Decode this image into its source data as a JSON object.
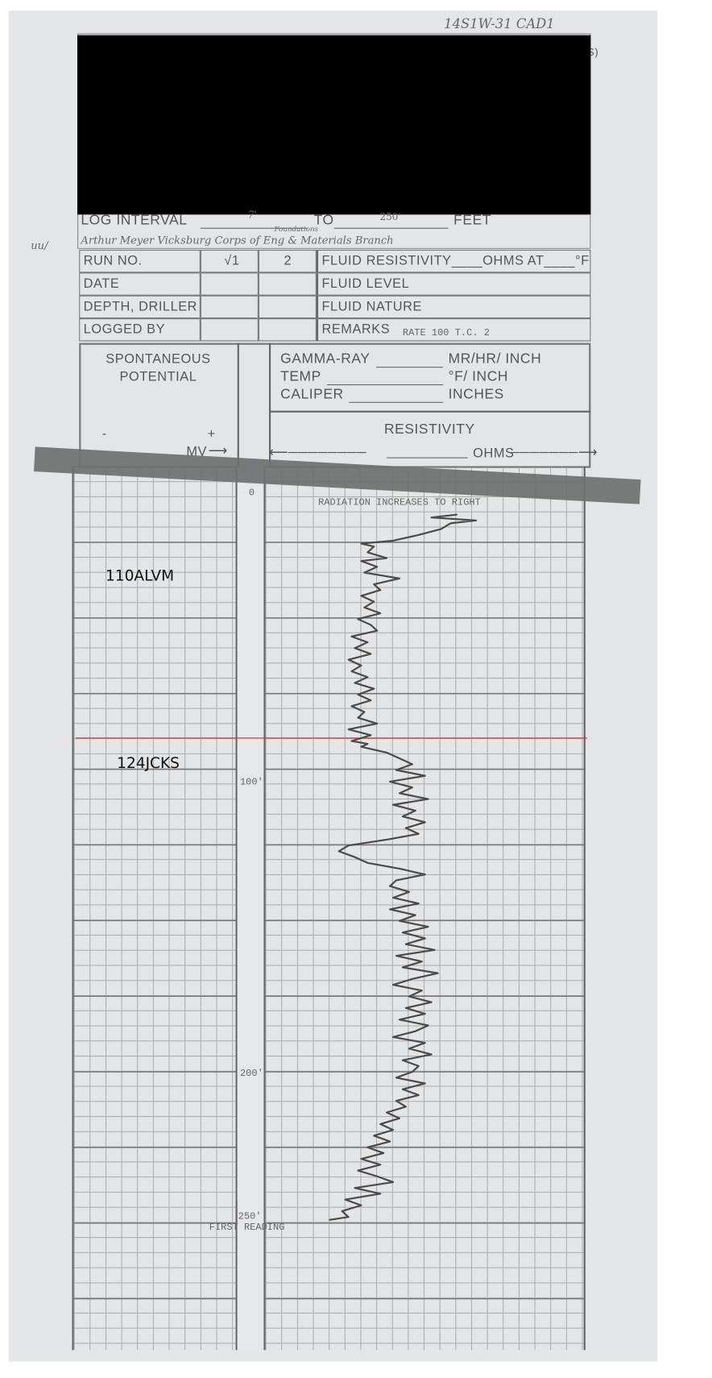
{
  "header": {
    "well_id_handwritten": "14S1W-31 CAD1",
    "cut_text": "S)",
    "log_interval_label": "LOG INTERVAL",
    "log_interval_from": "7'",
    "to_label": "TO",
    "log_interval_to": "250'",
    "feet_label": "FEET",
    "handwritten_note_prefix": "uu/",
    "handwritten_note": "Arthur Meyer  Vicksburg Corps of Eng  & Materials Branch",
    "handwritten_note_super": "Foundations"
  },
  "info_table": {
    "rows": [
      {
        "label": "RUN NO.",
        "value1": "√1",
        "value2": "2",
        "right": "FLUID RESISTIVITY____OHMS AT____°F"
      },
      {
        "label": "DATE",
        "value1": "",
        "value2": "",
        "right": "FLUID  LEVEL"
      },
      {
        "label": "DEPTH, DRILLER",
        "value1": "",
        "value2": "",
        "right": "FLUID  NATURE"
      },
      {
        "label": "LOGGED BY",
        "value1": "",
        "value2": "",
        "right": "REMARKS"
      }
    ],
    "remarks_value": "RATE 100 T.C. 2"
  },
  "track_headers": {
    "sp_title_1": "SPONTANEOUS",
    "sp_title_2": "POTENTIAL",
    "sp_minus": "-",
    "sp_plus": "+",
    "sp_unit": "MV",
    "gamma_label": "GAMMA-RAY",
    "gamma_unit": "MR/HR/ INCH",
    "temp_label": "TEMP",
    "temp_unit": "°F/ INCH",
    "caliper_label": "CALIPER",
    "caliper_unit": "INCHES",
    "resistivity_label": "RESISTIVITY",
    "ohms_label": "OHMS"
  },
  "log_body": {
    "radiation_note": "RADIATION INCREASES TO RIGHT",
    "first_reading": "FIRST READING",
    "depth_labels": [
      "0",
      "100'",
      "200'",
      "250'"
    ],
    "formations": [
      {
        "name": "110ALVM"
      },
      {
        "name": "124JCKS"
      }
    ],
    "contact_line_color": "#e0343a"
  },
  "chart_data": {
    "type": "line",
    "xlabel": "",
    "ylabel": "",
    "y_axis": "depth (ft), increasing downward",
    "ylim": [
      0,
      250
    ],
    "x_units": "chart divisions across gamma-ray track",
    "xlim": [
      0,
      10
    ],
    "series": [
      {
        "points": [
          [
            7,
            6.0
          ],
          [
            8,
            5.2
          ],
          [
            9,
            6.6
          ],
          [
            10,
            5.8
          ],
          [
            12,
            5.5
          ],
          [
            14,
            4.8
          ],
          [
            16,
            4.0
          ],
          [
            17,
            3.0
          ],
          [
            18,
            3.4
          ],
          [
            20,
            3.2
          ],
          [
            22,
            3.8
          ],
          [
            23,
            3.0
          ],
          [
            25,
            3.5
          ],
          [
            27,
            3.1
          ],
          [
            29,
            4.2
          ],
          [
            31,
            3.4
          ],
          [
            33,
            3.6
          ],
          [
            35,
            3.0
          ],
          [
            37,
            3.4
          ],
          [
            39,
            3.1
          ],
          [
            41,
            3.6
          ],
          [
            43,
            2.9
          ],
          [
            45,
            3.3
          ],
          [
            47,
            3.5
          ],
          [
            49,
            2.7
          ],
          [
            51,
            3.2
          ],
          [
            53,
            2.8
          ],
          [
            55,
            3.3
          ],
          [
            57,
            2.6
          ],
          [
            59,
            3.0
          ],
          [
            61,
            2.7
          ],
          [
            63,
            3.2
          ],
          [
            65,
            2.8
          ],
          [
            67,
            3.4
          ],
          [
            69,
            2.9
          ],
          [
            71,
            3.3
          ],
          [
            73,
            2.7
          ],
          [
            75,
            3.1
          ],
          [
            77,
            2.9
          ],
          [
            79,
            3.5
          ],
          [
            81,
            2.6
          ],
          [
            83,
            3.3
          ],
          [
            85,
            2.7
          ],
          [
            86,
            3.2
          ],
          [
            87,
            3.0
          ],
          [
            89,
            3.8
          ],
          [
            91,
            4.2
          ],
          [
            93,
            4.6
          ],
          [
            95,
            4.1
          ],
          [
            97,
            5.0
          ],
          [
            99,
            3.9
          ],
          [
            101,
            4.6
          ],
          [
            103,
            4.2
          ],
          [
            105,
            5.1
          ],
          [
            107,
            4.0
          ],
          [
            109,
            4.7
          ],
          [
            111,
            4.3
          ],
          [
            113,
            5.0
          ],
          [
            115,
            4.4
          ],
          [
            117,
            4.8
          ],
          [
            119,
            3.8
          ],
          [
            121,
            2.6
          ],
          [
            123,
            2.3
          ],
          [
            125,
            2.8
          ],
          [
            127,
            3.2
          ],
          [
            129,
            4.2
          ],
          [
            131,
            5.0
          ],
          [
            133,
            4.1
          ],
          [
            135,
            3.9
          ],
          [
            137,
            4.5
          ],
          [
            139,
            4.0
          ],
          [
            141,
            4.8
          ],
          [
            143,
            3.9
          ],
          [
            145,
            4.7
          ],
          [
            147,
            4.2
          ],
          [
            149,
            5.1
          ],
          [
            151,
            4.3
          ],
          [
            153,
            5.0
          ],
          [
            155,
            4.4
          ],
          [
            157,
            5.3
          ],
          [
            159,
            4.1
          ],
          [
            161,
            4.9
          ],
          [
            163,
            4.3
          ],
          [
            165,
            5.4
          ],
          [
            167,
            4.6
          ],
          [
            169,
            4.0
          ],
          [
            171,
            4.9
          ],
          [
            173,
            4.5
          ],
          [
            175,
            5.2
          ],
          [
            177,
            4.4
          ],
          [
            179,
            5.0
          ],
          [
            181,
            4.2
          ],
          [
            183,
            5.1
          ],
          [
            185,
            4.7
          ],
          [
            187,
            4.0
          ],
          [
            189,
            5.0
          ],
          [
            191,
            4.5
          ],
          [
            193,
            5.2
          ],
          [
            195,
            4.3
          ],
          [
            197,
            4.8
          ],
          [
            199,
            4.6
          ],
          [
            201,
            4.1
          ],
          [
            203,
            5.0
          ],
          [
            205,
            4.3
          ],
          [
            207,
            4.8
          ],
          [
            209,
            4.1
          ],
          [
            211,
            4.4
          ],
          [
            213,
            3.8
          ],
          [
            215,
            4.2
          ],
          [
            217,
            3.6
          ],
          [
            219,
            4.0
          ],
          [
            221,
            3.4
          ],
          [
            223,
            3.9
          ],
          [
            225,
            3.2
          ],
          [
            227,
            3.7
          ],
          [
            229,
            3.0
          ],
          [
            231,
            3.6
          ],
          [
            233,
            2.9
          ],
          [
            235,
            3.5
          ],
          [
            237,
            4.0
          ],
          [
            239,
            2.8
          ],
          [
            241,
            3.6
          ],
          [
            243,
            2.5
          ],
          [
            245,
            3.0
          ],
          [
            247,
            2.4
          ],
          [
            249,
            2.6
          ],
          [
            250,
            2.0
          ]
        ]
      }
    ],
    "formation_contact_depth": 84
  }
}
